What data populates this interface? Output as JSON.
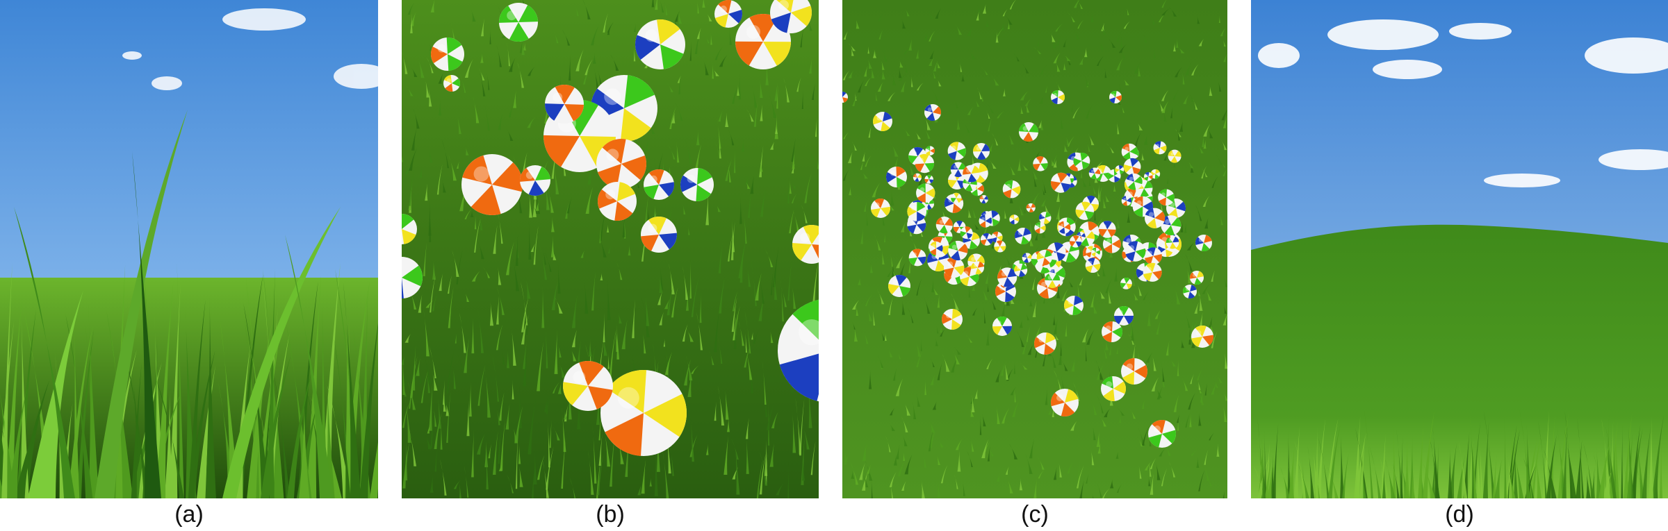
{
  "figure": {
    "panels": [
      {
        "id": "a",
        "caption": "(a)"
      },
      {
        "id": "b",
        "caption": "(b)"
      },
      {
        "id": "c",
        "caption": "(c)"
      },
      {
        "id": "d",
        "caption": "(d)"
      }
    ]
  },
  "colors": {
    "sky_top": "#3f86d6",
    "sky_bottom": "#a9cdf0",
    "grass_dark": "#2f6f12",
    "grass_mid": "#4f9a1e",
    "grass_light": "#7fc63a",
    "soil": "#5a3b1e",
    "ball_orange": "#f06a10",
    "ball_green": "#3cc81c",
    "ball_blue": "#1c3fc0",
    "ball_yellow": "#f2e21e",
    "ball_white": "#f4f4f4"
  }
}
